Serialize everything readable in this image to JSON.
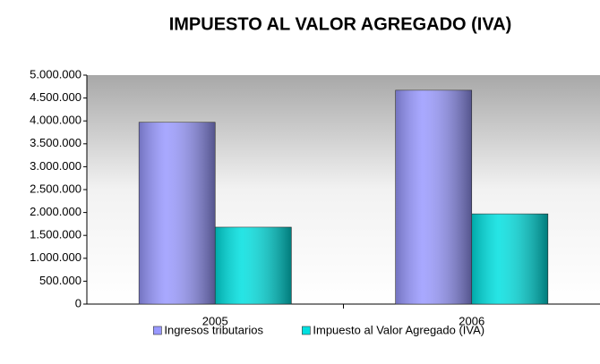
{
  "chart_data": {
    "type": "bar",
    "title": "IMPUESTO AL VALOR AGREGADO (IVA)",
    "categories": [
      "2005",
      "2006"
    ],
    "series": [
      {
        "name": "Ingresos tributarios",
        "color": "#9999ff",
        "values": [
          3970000,
          4670000
        ]
      },
      {
        "name": "Impuesto al Valor Agregado (IVA)",
        "color": "#00e0e0",
        "values": [
          1680000,
          1970000
        ]
      }
    ],
    "ylim": [
      0,
      5000000
    ],
    "yticks": [
      0,
      {
        "value": 500000,
        "label": "500.000"
      },
      {
        "value": 1000000,
        "label": "1.000.000"
      },
      {
        "value": 1500000,
        "label": "1.500.000"
      },
      {
        "value": 2000000,
        "label": "2.000.000"
      },
      {
        "value": 2500000,
        "label": "2.500.000"
      },
      {
        "value": 3000000,
        "label": "3.000.000"
      },
      {
        "value": 3500000,
        "label": "3.500.000"
      },
      {
        "value": 4000000,
        "label": "4.000.000"
      },
      {
        "value": 4500000,
        "label": "4.500.000"
      },
      {
        "value": 5000000,
        "label": "5.000.000"
      }
    ],
    "legend": "bottom"
  }
}
